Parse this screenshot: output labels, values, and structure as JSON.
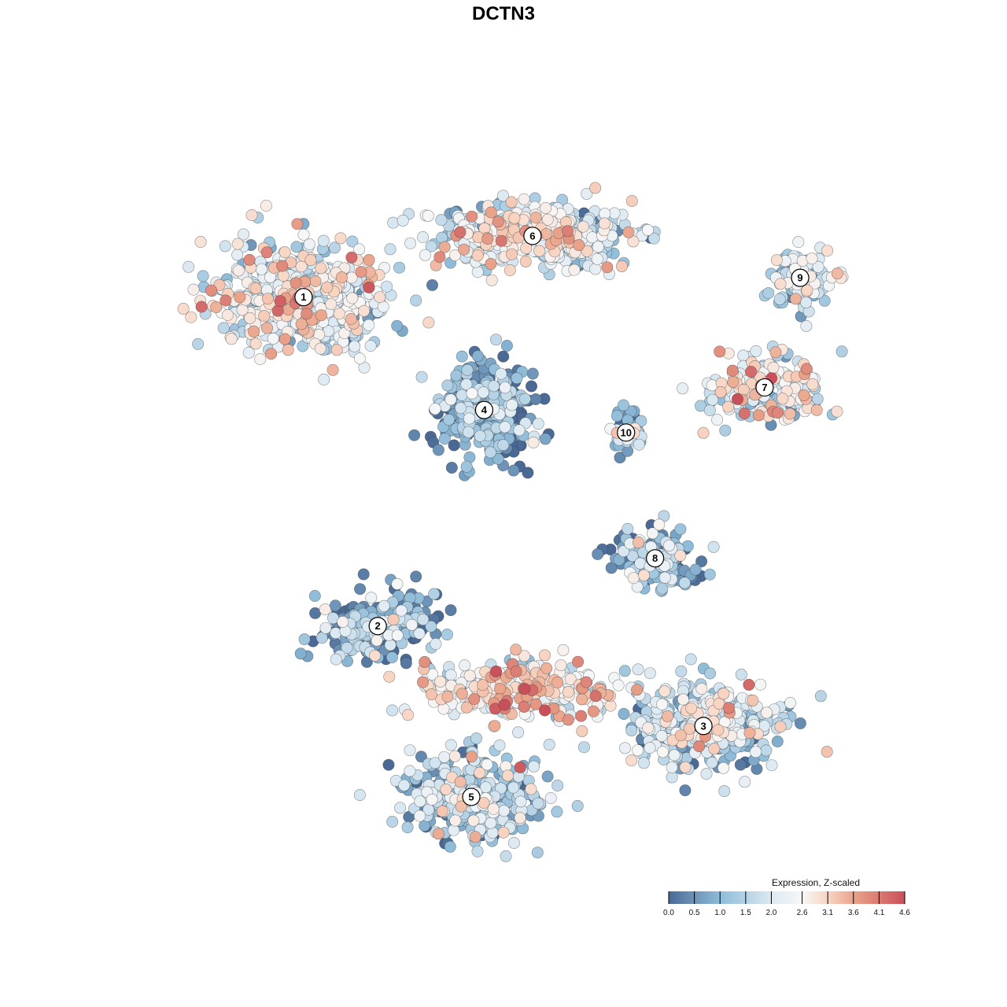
{
  "chart_data": {
    "type": "scatter",
    "title": "DCTN3",
    "xlabel": "",
    "ylabel": "",
    "grid": false,
    "legend": {
      "title": "Expression, Z-scaled",
      "placement": "bottom-right",
      "ticks": [
        "0.0",
        "0.5",
        "1.0",
        "1.5",
        "2.0",
        "2.6",
        "3.1",
        "3.6",
        "4.1",
        "4.6"
      ],
      "tick_values": [
        0.0,
        0.5,
        1.0,
        1.5,
        2.0,
        2.6,
        3.1,
        3.6,
        4.1,
        4.6
      ],
      "range": [
        0.0,
        4.6
      ]
    },
    "color_stops": [
      {
        "value": 0.0,
        "color": "#4a6a95"
      },
      {
        "value": 1.0,
        "color": "#8fbcd9"
      },
      {
        "value": 2.0,
        "color": "#dbe9f2"
      },
      {
        "value": 2.6,
        "color": "#f7f7f7"
      },
      {
        "value": 3.1,
        "color": "#f8d5c3"
      },
      {
        "value": 3.6,
        "color": "#eaa48b"
      },
      {
        "value": 4.6,
        "color": "#c9505a"
      }
    ],
    "clusters": [
      {
        "label": "1",
        "x": -6.2,
        "y": 6.4,
        "spread": [
          2.4,
          1.6
        ],
        "n": 560,
        "mean_expr": 2.1
      },
      {
        "label": "2",
        "x": -3.9,
        "y": -3.8,
        "spread": [
          1.6,
          1.0
        ],
        "n": 220,
        "mean_expr": 0.8
      },
      {
        "label": "3",
        "x": 6.2,
        "y": -6.9,
        "spread": [
          2.1,
          1.2
        ],
        "n": 420,
        "mean_expr": 1.7
      },
      {
        "label": "4",
        "x": -0.6,
        "y": 2.9,
        "spread": [
          1.3,
          1.4
        ],
        "n": 360,
        "mean_expr": 0.6
      },
      {
        "label": "5",
        "x": -1.0,
        "y": -9.1,
        "spread": [
          1.9,
          1.2
        ],
        "n": 360,
        "mean_expr": 1.3
      },
      {
        "label": "6",
        "x": 0.9,
        "y": 8.3,
        "spread": [
          2.8,
          0.9
        ],
        "n": 420,
        "mean_expr": 2.0
      },
      {
        "label": "7",
        "x": 8.1,
        "y": 3.6,
        "spread": [
          1.7,
          0.9
        ],
        "n": 200,
        "mean_expr": 2.4
      },
      {
        "label": "8",
        "x": 4.7,
        "y": -1.7,
        "spread": [
          1.2,
          0.8
        ],
        "n": 170,
        "mean_expr": 1.0
      },
      {
        "label": "9",
        "x": 9.2,
        "y": 7.0,
        "spread": [
          0.9,
          0.8
        ],
        "n": 110,
        "mean_expr": 1.8
      },
      {
        "label": "10",
        "x": 3.8,
        "y": 2.2,
        "spread": [
          0.4,
          0.5
        ],
        "n": 45,
        "mean_expr": 1.1
      },
      {
        "label": "",
        "x": 0.6,
        "y": -5.8,
        "spread": [
          2.8,
          0.8
        ],
        "n": 300,
        "mean_expr": 2.6
      }
    ],
    "xlim": [
      -12.2,
      12.2
    ],
    "ylim": [
      -12.2,
      12.2
    ]
  }
}
